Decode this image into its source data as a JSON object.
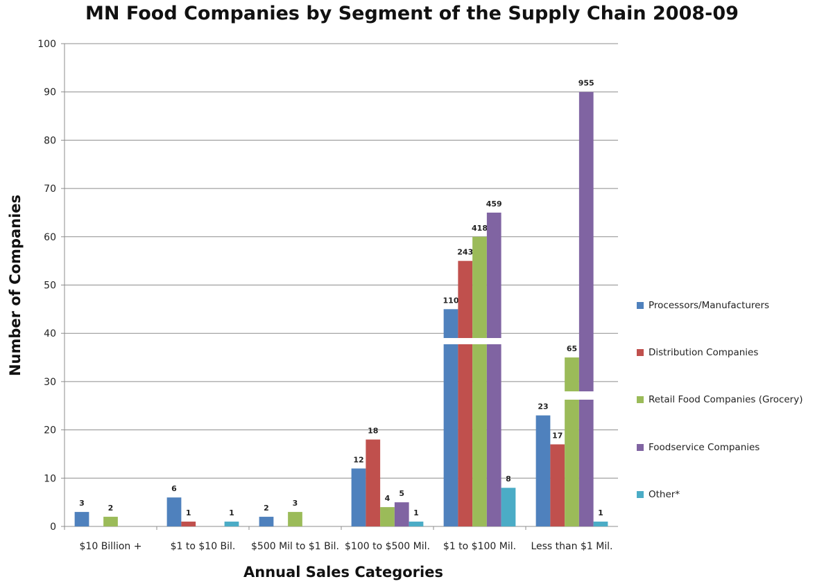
{
  "chart_data": {
    "type": "bar",
    "title": "MN Food Companies by Segment of the Supply Chain 2008-09",
    "xlabel": "Annual Sales Categories",
    "ylabel": "Number of Companies",
    "ylim": [
      0,
      100
    ],
    "yticks": [
      "0",
      "10",
      "20",
      "30",
      "40",
      "50",
      "60",
      "70",
      "80",
      "90",
      "100"
    ],
    "grid": true,
    "legend_position": "right",
    "axis_break": true,
    "categories": [
      "$10 Billion +",
      "$1 to $10 Bil.",
      "$500 Mil to $1 Bil.",
      "$100 to $500 Mil.",
      "$1 to $100 Mil.",
      "Less than $1 Mil."
    ],
    "series": [
      {
        "name": "Processors/Manufacturers",
        "color": "#4F81BD",
        "values": [
          3,
          6,
          2,
          12,
          110,
          23
        ],
        "labels": [
          "3",
          "6",
          "2",
          "12",
          "110",
          "23"
        ]
      },
      {
        "name": "Distribution Companies",
        "color": "#C0504D",
        "values": [
          null,
          1,
          null,
          18,
          243,
          17
        ],
        "labels": [
          "",
          "1",
          "",
          "18",
          "243",
          "17"
        ]
      },
      {
        "name": "Retail Food Companies  (Grocery)",
        "color": "#9BBB59",
        "values": [
          2,
          null,
          3,
          4,
          418,
          65
        ],
        "labels": [
          "2",
          "",
          "3",
          "4",
          "418",
          "65"
        ]
      },
      {
        "name": "Foodservice Companies",
        "color": "#8064A2",
        "values": [
          null,
          null,
          null,
          5,
          459,
          955
        ],
        "labels": [
          "",
          "",
          "",
          "5",
          "459",
          "955"
        ]
      },
      {
        "name": "Other*",
        "color": "#4BACC6",
        "values": [
          null,
          1,
          null,
          1,
          8,
          1
        ],
        "labels": [
          "",
          "1",
          "",
          "1",
          "8",
          "1"
        ]
      }
    ]
  }
}
